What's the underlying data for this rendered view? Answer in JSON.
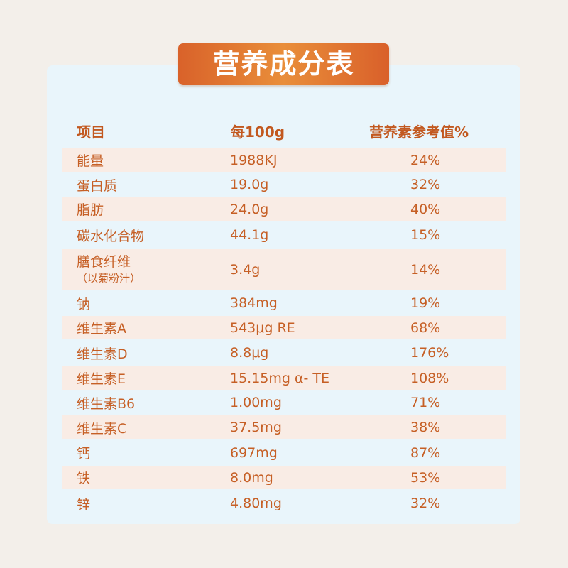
{
  "title": "营养成分表",
  "headers": {
    "name": "项目",
    "value": "每100g",
    "pct": "营养素参考值%"
  },
  "rows": [
    {
      "name": "能量",
      "note": "",
      "value": "1988KJ",
      "pct": "24%"
    },
    {
      "name": "蛋白质",
      "note": "",
      "value": "19.0g",
      "pct": "32%"
    },
    {
      "name": "脂肪",
      "note": "",
      "value": "24.0g",
      "pct": "40%"
    },
    {
      "name": "碳水化合物",
      "note": "",
      "value": "44.1g",
      "pct": "15%"
    },
    {
      "name": "膳食纤维",
      "note": "（以菊粉汁）",
      "value": "3.4g",
      "pct": "14%"
    },
    {
      "name": "钠",
      "note": "",
      "value": "384mg",
      "pct": "19%"
    },
    {
      "name": "维生素A",
      "note": "",
      "value": "543μg RE",
      "pct": "68%"
    },
    {
      "name": "维生素D",
      "note": "",
      "value": "8.8μg",
      "pct": "176%"
    },
    {
      "name": "维生素E",
      "note": "",
      "value": "15.15mg α- TE",
      "pct": "108%"
    },
    {
      "name": "维生素B6",
      "note": "",
      "value": "1.00mg",
      "pct": "71%"
    },
    {
      "name": "维生素C",
      "note": "",
      "value": "37.5mg",
      "pct": "38%"
    },
    {
      "name": "钙",
      "note": "",
      "value": "697mg",
      "pct": "87%"
    },
    {
      "name": "铁",
      "note": "",
      "value": "8.0mg",
      "pct": "53%"
    },
    {
      "name": "锌",
      "note": "",
      "value": "4.80mg",
      "pct": "32%"
    }
  ]
}
